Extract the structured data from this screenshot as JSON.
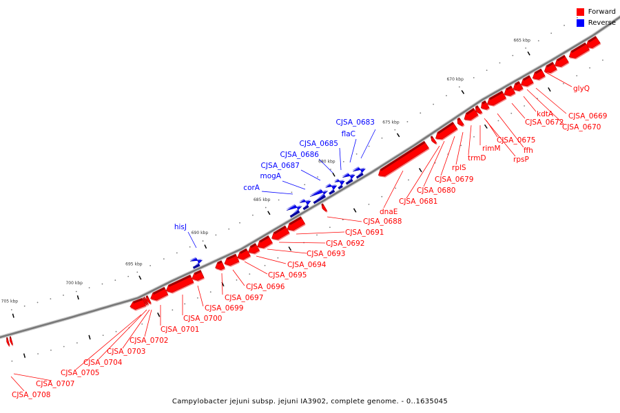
{
  "title": "Campylobacter jejuni subsp. jejuni IA3902, complete genome. - 0..1635045",
  "legend": [
    {
      "label": "Forward",
      "color": "#ff0000"
    },
    {
      "label": "Reverse",
      "color": "#0000ff"
    }
  ],
  "scale": {
    "major_ticks_kbp": [
      665,
      670,
      675,
      680,
      685,
      690,
      695,
      700,
      705
    ],
    "unit": "kbp",
    "minor_start": 661,
    "minor_end": 706
  },
  "genes": [
    {
      "name": "",
      "strand": "forward",
      "start_kbp": 660.6,
      "end_kbp": 661.5
    },
    {
      "name": "glyQ",
      "strand": "forward",
      "start_kbp": 661.4,
      "end_kbp": 662.8
    },
    {
      "name": "CJSA_0669",
      "strand": "forward",
      "start_kbp": 663.0,
      "end_kbp": 663.9
    },
    {
      "name": "CJSA_0670",
      "strand": "forward",
      "start_kbp": 663.9,
      "end_kbp": 664.7
    },
    {
      "name": "kdtA",
      "strand": "forward",
      "start_kbp": 664.8,
      "end_kbp": 665.6
    },
    {
      "name": "CJSA_0672",
      "strand": "forward",
      "start_kbp": 665.7,
      "end_kbp": 666.5
    },
    {
      "name": "ffh",
      "strand": "forward",
      "start_kbp": 666.5,
      "end_kbp": 667.1
    },
    {
      "name": "CJSA_0675",
      "strand": "forward",
      "start_kbp": 667.1,
      "end_kbp": 667.8
    },
    {
      "name": "rpsP",
      "strand": "forward",
      "start_kbp": 667.8,
      "end_kbp": 669.1
    },
    {
      "name": "rimM",
      "strand": "forward",
      "start_kbp": 669.1,
      "end_kbp": 669.6
    },
    {
      "name": "trmD",
      "strand": "forward",
      "start_kbp": 669.7,
      "end_kbp": 670.0
    },
    {
      "name": "rplS",
      "strand": "forward",
      "start_kbp": 670.0,
      "end_kbp": 670.9
    },
    {
      "name": "CJSA_0679",
      "strand": "forward",
      "start_kbp": 671.1,
      "end_kbp": 671.4
    },
    {
      "name": "CJSA_0680",
      "strand": "forward",
      "start_kbp": 671.6,
      "end_kbp": 673.1
    },
    {
      "name": "CJSA_0681",
      "strand": "forward",
      "start_kbp": 673.2,
      "end_kbp": 673.4
    },
    {
      "name": "dnaE",
      "strand": "forward",
      "start_kbp": 673.8,
      "end_kbp": 677.5
    },
    {
      "name": "CJSA_0683",
      "strand": "reverse",
      "start_kbp": 678.0,
      "end_kbp": 678.8
    },
    {
      "name": "flaC",
      "strand": "reverse",
      "start_kbp": 678.8,
      "end_kbp": 679.6
    },
    {
      "name": "CJSA_0685",
      "strand": "reverse",
      "start_kbp": 679.6,
      "end_kbp": 680.2
    },
    {
      "name": "CJSA_0686",
      "strand": "reverse",
      "start_kbp": 680.2,
      "end_kbp": 680.9
    },
    {
      "name": "CJSA_0687",
      "strand": "reverse",
      "start_kbp": 680.9,
      "end_kbp": 682.1
    },
    {
      "name": "CJSA_0688",
      "strand": "forward",
      "start_kbp": 681.6,
      "end_kbp": 681.8
    },
    {
      "name": "mogA",
      "strand": "reverse",
      "start_kbp": 682.2,
      "end_kbp": 682.9
    },
    {
      "name": "corA",
      "strand": "reverse",
      "start_kbp": 682.9,
      "end_kbp": 683.9
    },
    {
      "name": "CJSA_0691",
      "strand": "forward",
      "start_kbp": 683.3,
      "end_kbp": 684.5
    },
    {
      "name": "CJSA_0692",
      "strand": "forward",
      "start_kbp": 684.5,
      "end_kbp": 685.7
    },
    {
      "name": "CJSA_0693",
      "strand": "forward",
      "start_kbp": 685.8,
      "end_kbp": 686.8
    },
    {
      "name": "CJSA_0694",
      "strand": "forward",
      "start_kbp": 686.8,
      "end_kbp": 687.5
    },
    {
      "name": "CJSA_0695",
      "strand": "forward",
      "start_kbp": 687.5,
      "end_kbp": 688.3
    },
    {
      "name": "CJSA_0696",
      "strand": "forward",
      "start_kbp": 688.3,
      "end_kbp": 689.3
    },
    {
      "name": "CJSA_0697",
      "strand": "forward",
      "start_kbp": 689.4,
      "end_kbp": 690.0
    },
    {
      "name": "hisJ",
      "strand": "reverse",
      "start_kbp": 690.6,
      "end_kbp": 691.4
    },
    {
      "name": "CJSA_0699",
      "strand": "forward",
      "start_kbp": 691.0,
      "end_kbp": 691.8
    },
    {
      "name": "CJSA_0700",
      "strand": "forward",
      "start_kbp": 691.8,
      "end_kbp": 693.8
    },
    {
      "name": "CJSA_0701",
      "strand": "forward",
      "start_kbp": 693.8,
      "end_kbp": 695.0
    },
    {
      "name": "CJSA_0702",
      "strand": "forward",
      "start_kbp": 695.1,
      "end_kbp": 695.3
    },
    {
      "name": "CJSA_0703",
      "strand": "forward",
      "start_kbp": 695.3,
      "end_kbp": 695.4
    },
    {
      "name": "CJSA_0704",
      "strand": "forward",
      "start_kbp": 695.4,
      "end_kbp": 695.5
    },
    {
      "name": "CJSA_0705",
      "strand": "forward",
      "start_kbp": 695.5,
      "end_kbp": 696.5
    },
    {
      "name": "CJSA_0707",
      "strand": "forward",
      "start_kbp": 705.6,
      "end_kbp": 705.75
    },
    {
      "name": "CJSA_0708",
      "strand": "forward",
      "start_kbp": 705.85,
      "end_kbp": 706.0
    }
  ]
}
